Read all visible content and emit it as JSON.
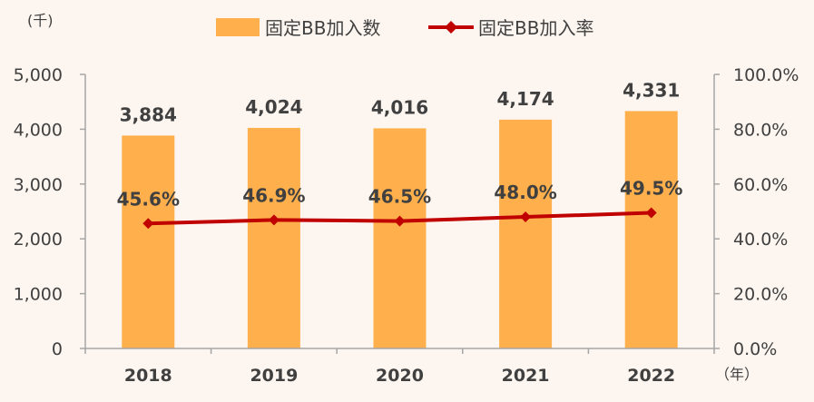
{
  "chart_data": {
    "type": "bar",
    "categories": [
      "2018",
      "2019",
      "2020",
      "2021",
      "2022"
    ],
    "series": [
      {
        "name": "固定BB加入数",
        "type": "bar",
        "axis": "left",
        "values": [
          3884,
          4024,
          4016,
          4174,
          4331
        ],
        "labels": [
          "3,884",
          "4,024",
          "4,016",
          "4,174",
          "4,331"
        ],
        "color": "#ffb04c"
      },
      {
        "name": "固定BB加入率",
        "type": "line",
        "axis": "right",
        "values": [
          45.6,
          46.9,
          46.5,
          48.0,
          49.5
        ],
        "labels": [
          "45.6%",
          "46.9%",
          "46.5%",
          "48.0%",
          "49.5%"
        ],
        "color": "#c00000"
      }
    ],
    "left_axis": {
      "unit": "(千)",
      "min": 0,
      "max": 5000,
      "ticks": [
        "0",
        "1,000",
        "2,000",
        "3,000",
        "4,000",
        "5,000"
      ]
    },
    "right_axis": {
      "min": 0,
      "max": 100,
      "ticks": [
        "0.0%",
        "20.0%",
        "40.0%",
        "60.0%",
        "80.0%",
        "100.0%"
      ]
    },
    "x_axis_unit": "（年）",
    "legend": "top-center",
    "grid": false
  }
}
